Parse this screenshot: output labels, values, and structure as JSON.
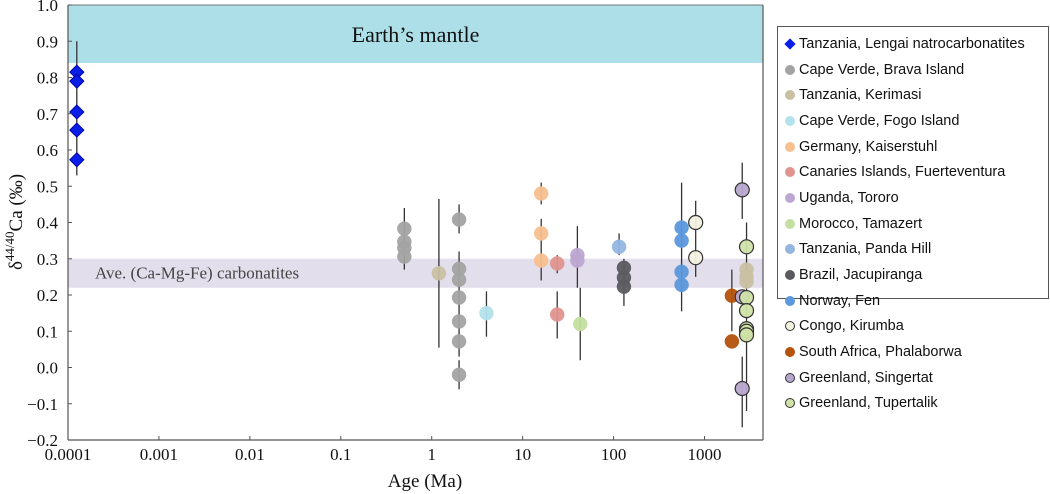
{
  "chart_data": {
    "type": "scatter",
    "title": "",
    "xlabel": "Age (Ma)",
    "ylabel_main": "δ",
    "ylabel_sup": "44/40",
    "ylabel_rest": "Ca (‰)",
    "xscale": "log",
    "xlim": [
      0.0001,
      4400
    ],
    "ylim": [
      -0.2,
      1.0
    ],
    "xticks": [
      0.0001,
      0.001,
      0.01,
      0.1,
      1,
      10,
      100,
      1000
    ],
    "xtick_labels": [
      "0.0001",
      "0.001",
      "0.01",
      "0.1",
      "1",
      "10",
      "100",
      "1000"
    ],
    "yticks": [
      -0.2,
      -0.1,
      0.0,
      0.1,
      0.2,
      0.3,
      0.4,
      0.5,
      0.6,
      0.7,
      0.8,
      0.9,
      1.0
    ],
    "ytick_labels": [
      "−0.2",
      "−0.1",
      "0.0",
      "0.1",
      "0.2",
      "0.3",
      "0.4",
      "0.5",
      "0.6",
      "0.7",
      "0.8",
      "0.9",
      "1.0"
    ],
    "grid": false,
    "legend_position": "right",
    "bands": [
      {
        "label": "Earth’s mantle",
        "y0": 0.84,
        "y1": 1.0,
        "color": "#addfe9"
      },
      {
        "label": "Ave. (Ca-Mg-Fe) carbonatites",
        "y0": 0.22,
        "y1": 0.3,
        "color": "#e3deec"
      }
    ],
    "series": [
      {
        "name": "Tanzania, Lengai natrocarbonatites",
        "marker": "diamond",
        "color": "#0a1fe6",
        "edge": "#0a1fe6",
        "points": [
          {
            "x": 0.000125,
            "y": 0.815
          },
          {
            "x": 0.000125,
            "y": 0.79
          },
          {
            "x": 0.000125,
            "y": 0.705
          },
          {
            "x": 0.000125,
            "y": 0.655
          },
          {
            "x": 0.000125,
            "y": 0.573
          }
        ],
        "errorbars": [
          {
            "x": 0.000125,
            "y0": 0.53,
            "y1": 0.9
          }
        ]
      },
      {
        "name": "Cape Verde, Brava Island",
        "marker": "circle",
        "color": "#a3a3a3",
        "edge": "#a3a3a3",
        "points": [
          {
            "x": 0.5,
            "y": 0.383
          },
          {
            "x": 0.5,
            "y": 0.347
          },
          {
            "x": 0.5,
            "y": 0.33
          },
          {
            "x": 0.5,
            "y": 0.306
          },
          {
            "x": 2.0,
            "y": 0.408
          },
          {
            "x": 2.0,
            "y": 0.272
          },
          {
            "x": 2.0,
            "y": 0.242
          },
          {
            "x": 2.0,
            "y": 0.193
          },
          {
            "x": 2.0,
            "y": 0.127
          },
          {
            "x": 2.0,
            "y": 0.072
          },
          {
            "x": 2.0,
            "y": -0.02
          }
        ],
        "errorbars": [
          {
            "x": 0.5,
            "y0": 0.27,
            "y1": 0.44
          },
          {
            "x": 2.0,
            "y0": 0.37,
            "y1": 0.45
          },
          {
            "x": 2.0,
            "y0": 0.03,
            "y1": 0.32
          },
          {
            "x": 2.0,
            "y0": -0.06,
            "y1": 0.02
          }
        ]
      },
      {
        "name": "Tanzania, Kerimasi",
        "marker": "circle",
        "color": "#c9c0a3",
        "edge": "#c9c0a3",
        "points": [
          {
            "x": 1.2,
            "y": 0.26
          },
          {
            "x": 2900,
            "y": 0.27
          },
          {
            "x": 2900,
            "y": 0.25
          },
          {
            "x": 2900,
            "y": 0.237
          }
        ],
        "errorbars": [
          {
            "x": 1.2,
            "y0": 0.055,
            "y1": 0.465
          }
        ]
      },
      {
        "name": "Cape Verde, Fogo Island",
        "marker": "circle",
        "color": "#b3e2ec",
        "edge": "#b3e2ec",
        "points": [
          {
            "x": 4.0,
            "y": 0.15
          }
        ],
        "errorbars": [
          {
            "x": 4.0,
            "y0": 0.085,
            "y1": 0.21
          }
        ]
      },
      {
        "name": "Germany, Kaiserstuhl",
        "marker": "circle",
        "color": "#f7c08f",
        "edge": "#f7c08f",
        "points": [
          {
            "x": 16,
            "y": 0.48
          },
          {
            "x": 16,
            "y": 0.37
          },
          {
            "x": 16,
            "y": 0.295
          }
        ],
        "errorbars": [
          {
            "x": 16,
            "y0": 0.45,
            "y1": 0.51
          },
          {
            "x": 16,
            "y0": 0.24,
            "y1": 0.41
          }
        ]
      },
      {
        "name": "Canaries Islands, Fuerteventura",
        "marker": "circle",
        "color": "#e0938f",
        "edge": "#e0938f",
        "points": [
          {
            "x": 24,
            "y": 0.287
          },
          {
            "x": 24,
            "y": 0.146
          }
        ],
        "errorbars": [
          {
            "x": 24,
            "y0": 0.26,
            "y1": 0.31
          },
          {
            "x": 24,
            "y0": 0.08,
            "y1": 0.21
          }
        ]
      },
      {
        "name": "Uganda, Tororo",
        "marker": "circle",
        "color": "#bca7d2",
        "edge": "#bca7d2",
        "points": [
          {
            "x": 40,
            "y": 0.31
          },
          {
            "x": 40,
            "y": 0.295
          }
        ],
        "errorbars": [
          {
            "x": 40,
            "y0": 0.22,
            "y1": 0.39
          }
        ]
      },
      {
        "name": "Morocco, Tamazert",
        "marker": "circle",
        "color": "#c4dfa0",
        "edge": "#c4dfa0",
        "points": [
          {
            "x": 43,
            "y": 0.12
          }
        ],
        "errorbars": [
          {
            "x": 43,
            "y0": 0.02,
            "y1": 0.22
          }
        ]
      },
      {
        "name": "Tanzania, Panda Hill",
        "marker": "circle",
        "color": "#93b6e0",
        "edge": "#93b6e0",
        "points": [
          {
            "x": 115,
            "y": 0.333
          }
        ],
        "errorbars": [
          {
            "x": 115,
            "y0": 0.31,
            "y1": 0.37
          }
        ]
      },
      {
        "name": "Brazil, Jacupiranga",
        "marker": "circle",
        "color": "#5b5b5f",
        "edge": "#5b5b5f",
        "points": [
          {
            "x": 130,
            "y": 0.275
          },
          {
            "x": 130,
            "y": 0.248
          },
          {
            "x": 130,
            "y": 0.223
          }
        ],
        "errorbars": [
          {
            "x": 130,
            "y0": 0.17,
            "y1": 0.3
          }
        ]
      },
      {
        "name": "Norway, Fen",
        "marker": "circle",
        "color": "#5b98dc",
        "edge": "#5b98dc",
        "points": [
          {
            "x": 560,
            "y": 0.386
          },
          {
            "x": 560,
            "y": 0.35
          },
          {
            "x": 560,
            "y": 0.264
          },
          {
            "x": 560,
            "y": 0.228
          }
        ],
        "errorbars": [
          {
            "x": 560,
            "y0": 0.155,
            "y1": 0.51
          }
        ]
      },
      {
        "name": "Congo, Kirumba",
        "marker": "circle",
        "color": "#f3f1e0",
        "edge": "#333333",
        "points": [
          {
            "x": 800,
            "y": 0.4
          },
          {
            "x": 800,
            "y": 0.303
          }
        ],
        "errorbars": [
          {
            "x": 800,
            "y0": 0.25,
            "y1": 0.46
          }
        ]
      },
      {
        "name": "South Africa, Phalaborwa",
        "marker": "circle",
        "color": "#b5520c",
        "edge": "#b5520c",
        "points": [
          {
            "x": 2000,
            "y": 0.198
          },
          {
            "x": 2000,
            "y": 0.072
          }
        ],
        "errorbars": [
          {
            "x": 2000,
            "y0": 0.1,
            "y1": 0.27
          }
        ]
      },
      {
        "name": "Greenland, Singertat",
        "marker": "circle",
        "color": "#b8a6cf",
        "edge": "#333333",
        "points": [
          {
            "x": 2600,
            "y": 0.49
          },
          {
            "x": 2600,
            "y": 0.195
          },
          {
            "x": 2600,
            "y": -0.058
          }
        ],
        "errorbars": [
          {
            "x": 2600,
            "y0": 0.41,
            "y1": 0.565
          },
          {
            "x": 2600,
            "y0": -0.165,
            "y1": 0.03
          }
        ]
      },
      {
        "name": "Greenland, Tupertalik",
        "marker": "circle",
        "color": "#cfe3a8",
        "edge": "#333333",
        "points": [
          {
            "x": 2900,
            "y": 0.333
          },
          {
            "x": 2900,
            "y": 0.193
          },
          {
            "x": 2900,
            "y": 0.157
          },
          {
            "x": 2900,
            "y": 0.107
          },
          {
            "x": 2900,
            "y": 0.1
          },
          {
            "x": 2900,
            "y": 0.09
          }
        ],
        "errorbars": [
          {
            "x": 2900,
            "y0": -0.12,
            "y1": 0.4
          }
        ]
      }
    ]
  }
}
